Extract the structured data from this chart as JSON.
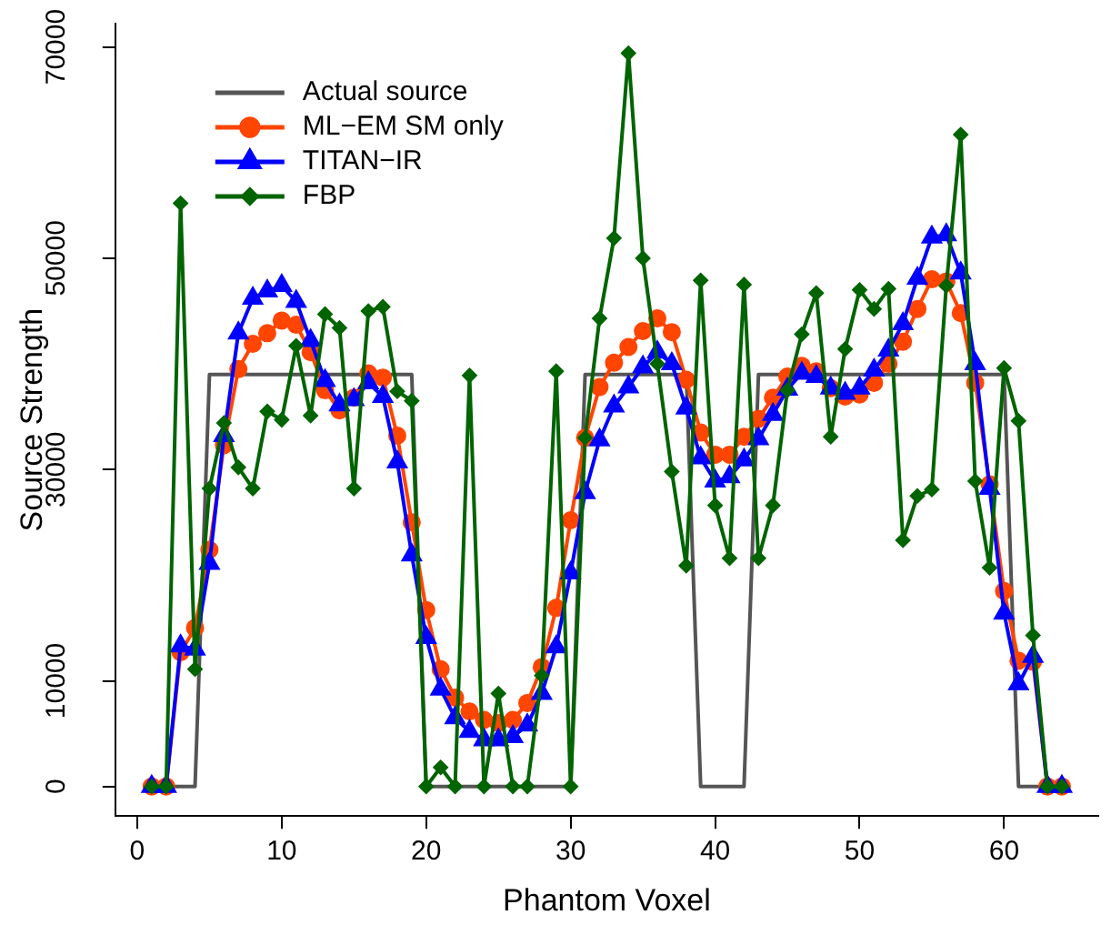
{
  "chart_data": {
    "type": "line",
    "xlabel": "Phantom Voxel",
    "ylabel": "Source Strength",
    "xlim": [
      -1.52,
      66.52
    ],
    "xticks": [
      0,
      10,
      20,
      30,
      40,
      50,
      60
    ],
    "ylim": [
      -2800,
      72200
    ],
    "yticks": [
      0,
      10000,
      30000,
      50000,
      70000
    ],
    "grid": false,
    "legend": "top left",
    "x": [
      1,
      2,
      3,
      4,
      5,
      6,
      7,
      8,
      9,
      10,
      11,
      12,
      13,
      14,
      15,
      16,
      17,
      18,
      19,
      20,
      21,
      22,
      23,
      24,
      25,
      26,
      27,
      28,
      29,
      30,
      31,
      32,
      33,
      34,
      35,
      36,
      37,
      38,
      39,
      40,
      41,
      42,
      43,
      44,
      45,
      46,
      47,
      48,
      49,
      50,
      51,
      52,
      53,
      54,
      55,
      56,
      57,
      58,
      59,
      60,
      61,
      62,
      63,
      64
    ],
    "series": [
      {
        "name": "Actual source",
        "color": "#555555",
        "marker": "none",
        "x": [
          1,
          4,
          5,
          19,
          20,
          30,
          31,
          38,
          39,
          42,
          43,
          60,
          61,
          64
        ],
        "values": [
          0,
          0,
          39000,
          39000,
          0,
          0,
          39000,
          39000,
          0,
          0,
          39000,
          39000,
          0,
          0
        ]
      },
      {
        "name": "ML−EM SM only",
        "color": "#ff4500",
        "marker": "circle",
        "values": [
          0,
          0,
          12700,
          15000,
          22400,
          32300,
          39500,
          41900,
          42900,
          44100,
          43700,
          41100,
          37500,
          35600,
          36800,
          39100,
          38700,
          33200,
          25000,
          16700,
          11100,
          8400,
          7100,
          6300,
          6000,
          6300,
          7900,
          11300,
          16900,
          25200,
          33000,
          37800,
          40100,
          41600,
          43100,
          44300,
          43000,
          38500,
          33500,
          31400,
          31400,
          33100,
          34800,
          36800,
          38800,
          39800,
          39300,
          37700,
          36900,
          37100,
          38200,
          40000,
          42100,
          45200,
          48000,
          47800,
          44800,
          38200,
          28600,
          18500,
          11900,
          11800,
          0,
          0
        ]
      },
      {
        "name": "TITAN−IR",
        "color": "#0000ff",
        "marker": "triangle",
        "values": [
          0,
          0,
          13300,
          13000,
          21100,
          33200,
          42900,
          46200,
          46900,
          47400,
          45900,
          42200,
          38400,
          36100,
          36600,
          38200,
          36900,
          30700,
          21900,
          14100,
          9200,
          6500,
          5200,
          4400,
          4400,
          4700,
          5800,
          8800,
          13200,
          20200,
          27800,
          32800,
          36000,
          37800,
          39700,
          41100,
          40000,
          35800,
          31100,
          28900,
          29300,
          30900,
          32900,
          35200,
          37600,
          39100,
          38800,
          37700,
          37200,
          37700,
          39400,
          41300,
          43800,
          48100,
          52000,
          52200,
          48600,
          40000,
          28200,
          16400,
          9700,
          12300,
          0,
          0
        ]
      },
      {
        "name": "FBP",
        "color": "#006400",
        "marker": "diamond",
        "values": [
          0,
          0,
          55200,
          11100,
          28200,
          34400,
          30200,
          28200,
          35500,
          34700,
          41700,
          35100,
          44700,
          43400,
          28200,
          45000,
          45400,
          37400,
          36500,
          0,
          1800,
          0,
          38900,
          0,
          8800,
          0,
          0,
          10500,
          39300,
          0,
          33000,
          44300,
          51900,
          69400,
          50000,
          40000,
          29800,
          20900,
          47900,
          26600,
          21600,
          47500,
          21600,
          26600,
          37500,
          42800,
          46700,
          33100,
          41400,
          47000,
          45200,
          47100,
          23300,
          27500,
          28100,
          47400,
          61700,
          28900,
          20700,
          39600,
          34600,
          14300,
          0,
          0
        ]
      }
    ]
  }
}
